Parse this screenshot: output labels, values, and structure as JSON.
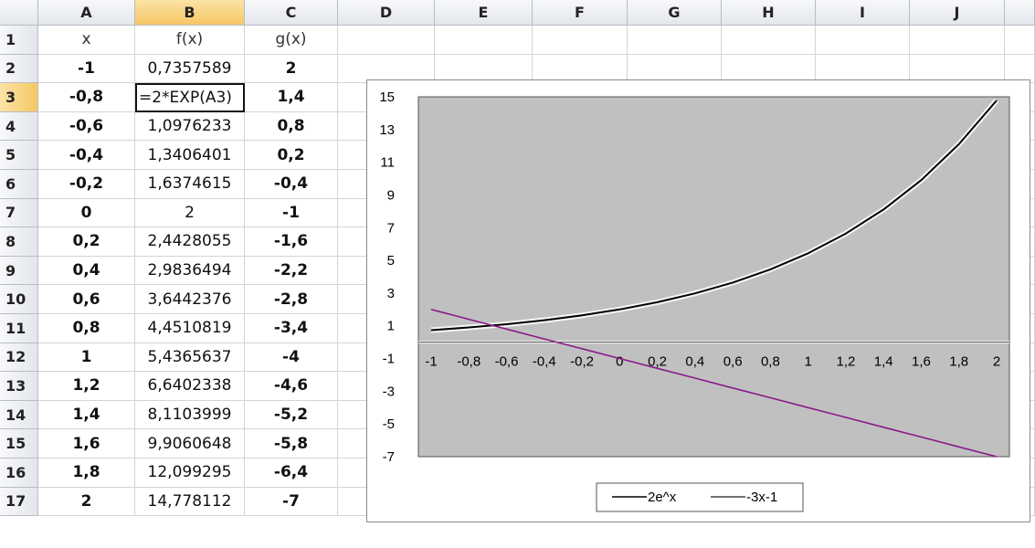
{
  "sheet": {
    "corner_label": "",
    "columns": [
      "A",
      "B",
      "C",
      "D",
      "E",
      "F",
      "G",
      "H",
      "I",
      "J",
      ""
    ],
    "selected_column": "B",
    "selected_row": "3",
    "rows": [
      {
        "n": "1",
        "a": "x",
        "b": "f(x)",
        "c": "g(x)"
      },
      {
        "n": "2",
        "a": "-1",
        "b": "0,7357589",
        "c": "2"
      },
      {
        "n": "3",
        "a": "-0,8",
        "b": "=2*EXP(A3)",
        "c": "1,4"
      },
      {
        "n": "4",
        "a": "-0,6",
        "b": "1,0976233",
        "c": "0,8"
      },
      {
        "n": "5",
        "a": "-0,4",
        "b": "1,3406401",
        "c": "0,2"
      },
      {
        "n": "6",
        "a": "-0,2",
        "b": "1,6374615",
        "c": "-0,4"
      },
      {
        "n": "7",
        "a": "0",
        "b": "2",
        "c": "-1"
      },
      {
        "n": "8",
        "a": "0,2",
        "b": "2,4428055",
        "c": "-1,6"
      },
      {
        "n": "9",
        "a": "0,4",
        "b": "2,9836494",
        "c": "-2,2"
      },
      {
        "n": "10",
        "a": "0,6",
        "b": "3,6442376",
        "c": "-2,8"
      },
      {
        "n": "11",
        "a": "0,8",
        "b": "4,4510819",
        "c": "-3,4"
      },
      {
        "n": "12",
        "a": "1",
        "b": "5,4365637",
        "c": "-4"
      },
      {
        "n": "13",
        "a": "1,2",
        "b": "6,6402338",
        "c": "-4,6"
      },
      {
        "n": "14",
        "a": "1,4",
        "b": "8,1103999",
        "c": "-5,2"
      },
      {
        "n": "15",
        "a": "1,6",
        "b": "9,9060648",
        "c": "-5,8"
      },
      {
        "n": "16",
        "a": "1,8",
        "b": "12,099295",
        "c": "-6,4"
      },
      {
        "n": "17",
        "a": "2",
        "b": "14,778112",
        "c": "-7"
      }
    ]
  },
  "colors": {
    "plot_area": "#c0c0c0",
    "series1": "#000000",
    "series2": "#8b1a8b",
    "selection_header": "#f6c764"
  },
  "chart_data": {
    "type": "line",
    "x": [
      "-1",
      "-0,8",
      "-0,6",
      "-0,4",
      "-0,2",
      "0",
      "0,2",
      "0,4",
      "0,6",
      "0,8",
      "1",
      "1,2",
      "1,4",
      "1,6",
      "1,8",
      "2"
    ],
    "x_values": [
      -1,
      -0.8,
      -0.6,
      -0.4,
      -0.2,
      0,
      0.2,
      0.4,
      0.6,
      0.8,
      1,
      1.2,
      1.4,
      1.6,
      1.8,
      2
    ],
    "series": [
      {
        "name": "2e^x",
        "values": [
          0.7357589,
          0.8986579,
          1.0976233,
          1.3406401,
          1.6374615,
          2,
          2.4428055,
          2.9836494,
          3.6442376,
          4.4510819,
          5.4365637,
          6.6402338,
          8.1103999,
          9.9060648,
          12.099295,
          14.778112
        ]
      },
      {
        "name": "-3x-1",
        "values": [
          2,
          1.4,
          0.8,
          0.2,
          -0.4,
          -1,
          -1.6,
          -2.2,
          -2.8,
          -3.4,
          -4,
          -4.6,
          -5.2,
          -5.8,
          -6.4,
          -7
        ]
      }
    ],
    "y_ticks": [
      "15",
      "13",
      "11",
      "9",
      "7",
      "5",
      "3",
      "1",
      "-1",
      "-3",
      "-5",
      "-7"
    ],
    "ylim": [
      -7,
      15
    ],
    "legend": "bottom",
    "grid": false
  }
}
